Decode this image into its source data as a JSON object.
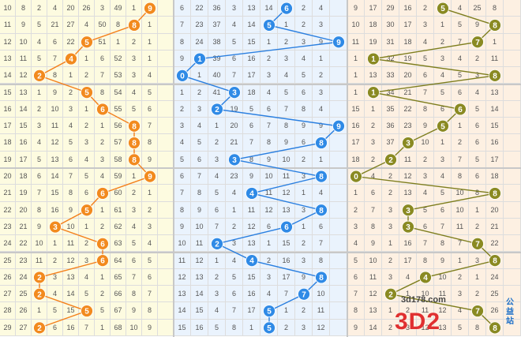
{
  "watermark": {
    "url": "3d178.com",
    "logo": "3D2",
    "side": "公益站"
  },
  "colors": {
    "zone1_bg": "#fdfbe0",
    "zone2_bg": "#eaf3fd",
    "zone3_bg": "#fdf0e2",
    "orange": "#f28a1e",
    "blue": "#2f8ae6",
    "olive": "#8a8a22",
    "line_orange": "#f47f1a",
    "line_blue": "#2a7fe0",
    "line_olive": "#7e7e1e"
  },
  "rows": [
    {
      "issue": "10",
      "a": [
        "8",
        "2",
        "4",
        "20",
        "26",
        "3",
        "49",
        "1",
        "9"
      ],
      "b": [
        "6",
        "22",
        "36",
        "3",
        "13",
        "14",
        "6",
        "2",
        "4"
      ],
      "c": [
        "9",
        "17",
        "29",
        "16",
        "2",
        "5",
        "4",
        "25",
        "8"
      ]
    },
    {
      "issue": "11",
      "a": [
        "9",
        "5",
        "21",
        "27",
        "4",
        "50",
        "8",
        "1",
        "1"
      ],
      "b": [
        "7",
        "23",
        "37",
        "4",
        "14",
        "5",
        "1",
        "2",
        "3"
      ],
      "c": [
        "10",
        "18",
        "30",
        "17",
        "3",
        "1",
        "5",
        "9",
        "9"
      ]
    },
    {
      "issue": "12",
      "a": [
        "10",
        "4",
        "6",
        "22",
        "5",
        "51",
        "1",
        "2",
        "1"
      ],
      "b": [
        "8",
        "24",
        "38",
        "5",
        "15",
        "1",
        "2",
        "3",
        "9"
      ],
      "c": [
        "11",
        "19",
        "31",
        "18",
        "4",
        "2",
        "7",
        "10",
        "1"
      ]
    },
    {
      "issue": "13",
      "a": [
        "11",
        "5",
        "7",
        "4",
        "1",
        "6",
        "52",
        "3",
        "1"
      ],
      "b": [
        "9",
        "1",
        "39",
        "6",
        "16",
        "2",
        "3",
        "4",
        "1"
      ],
      "c": [
        "1",
        "12",
        "32",
        "19",
        "5",
        "3",
        "4",
        "2",
        "11"
      ]
    },
    {
      "issue": "14",
      "a": [
        "12",
        "2",
        "8",
        "1",
        "2",
        "7",
        "53",
        "3",
        "4"
      ],
      "b": [
        "6",
        "1",
        "40",
        "7",
        "17",
        "3",
        "4",
        "5",
        "2"
      ],
      "c": [
        "1",
        "13",
        "33",
        "20",
        "6",
        "4",
        "5",
        "3",
        "9"
      ]
    },
    {
      "issue": "15",
      "a": [
        "13",
        "1",
        "9",
        "2",
        "5",
        "8",
        "54",
        "4",
        "5"
      ],
      "b": [
        "1",
        "2",
        "41",
        "3",
        "18",
        "4",
        "5",
        "6",
        "3"
      ],
      "c": [
        "1",
        "14",
        "34",
        "21",
        "7",
        "5",
        "6",
        "4",
        "13"
      ]
    },
    {
      "issue": "16",
      "a": [
        "14",
        "2",
        "10",
        "3",
        "1",
        "6",
        "55",
        "5",
        "6"
      ],
      "b": [
        "2",
        "3",
        "1",
        "19",
        "5",
        "6",
        "7",
        "8",
        "4"
      ],
      "c": [
        "15",
        "1",
        "35",
        "22",
        "8",
        "6",
        "6",
        "5",
        "14"
      ]
    },
    {
      "issue": "17",
      "a": [
        "15",
        "3",
        "11",
        "4",
        "2",
        "1",
        "56",
        "3",
        "7"
      ],
      "b": [
        "3",
        "4",
        "1",
        "20",
        "6",
        "7",
        "8",
        "9",
        "9"
      ],
      "c": [
        "16",
        "2",
        "36",
        "23",
        "9",
        "5",
        "1",
        "6",
        "15"
      ]
    },
    {
      "issue": "18",
      "a": [
        "16",
        "4",
        "12",
        "5",
        "3",
        "2",
        "57",
        "8",
        "8"
      ],
      "b": [
        "4",
        "5",
        "2",
        "21",
        "7",
        "8",
        "9",
        "6",
        "10"
      ],
      "c": [
        "17",
        "3",
        "37",
        "3",
        "10",
        "1",
        "2",
        "6",
        "16"
      ]
    },
    {
      "issue": "19",
      "a": [
        "17",
        "5",
        "13",
        "6",
        "4",
        "3",
        "58",
        "8",
        "9"
      ],
      "b": [
        "5",
        "6",
        "3",
        "22",
        "8",
        "9",
        "10",
        "2",
        "1"
      ],
      "c": [
        "18",
        "2",
        "1",
        "11",
        "2",
        "3",
        "7",
        "5",
        "17"
      ]
    },
    {
      "issue": "20",
      "a": [
        "18",
        "6",
        "14",
        "7",
        "5",
        "4",
        "59",
        "1",
        "9"
      ],
      "b": [
        "6",
        "7",
        "4",
        "23",
        "9",
        "10",
        "11",
        "3",
        "3"
      ],
      "c": [
        "6",
        "4",
        "2",
        "12",
        "3",
        "4",
        "8",
        "6",
        "18"
      ]
    },
    {
      "issue": "21",
      "a": [
        "19",
        "7",
        "15",
        "8",
        "6",
        "6",
        "60",
        "2",
        "1"
      ],
      "b": [
        "7",
        "8",
        "5",
        "4",
        "10",
        "11",
        "12",
        "1",
        "4"
      ],
      "c": [
        "1",
        "6",
        "2",
        "13",
        "4",
        "5",
        "10",
        "8",
        "19"
      ]
    },
    {
      "issue": "22",
      "a": [
        "20",
        "8",
        "16",
        "9",
        "5",
        "1",
        "61",
        "3",
        "2"
      ],
      "b": [
        "8",
        "9",
        "6",
        "1",
        "11",
        "12",
        "13",
        "3",
        "5"
      ],
      "c": [
        "2",
        "7",
        "3",
        "14",
        "5",
        "6",
        "10",
        "1",
        "20"
      ]
    },
    {
      "issue": "23",
      "a": [
        "21",
        "9",
        "3",
        "10",
        "1",
        "2",
        "62",
        "4",
        "3"
      ],
      "b": [
        "9",
        "10",
        "7",
        "2",
        "12",
        "6",
        "14",
        "1",
        "6"
      ],
      "c": [
        "3",
        "8",
        "3",
        "15",
        "6",
        "7",
        "11",
        "2",
        "21"
      ]
    },
    {
      "issue": "24",
      "a": [
        "22",
        "10",
        "1",
        "11",
        "2",
        "8",
        "63",
        "5",
        "4"
      ],
      "b": [
        "10",
        "11",
        "2",
        "3",
        "13",
        "1",
        "15",
        "2",
        "7"
      ],
      "c": [
        "4",
        "9",
        "1",
        "16",
        "7",
        "8",
        "7",
        "3",
        "22"
      ]
    },
    {
      "issue": "25",
      "a": [
        "23",
        "11",
        "2",
        "12",
        "3",
        "8",
        "64",
        "6",
        "5"
      ],
      "b": [
        "11",
        "12",
        "1",
        "4",
        "14",
        "2",
        "16",
        "3",
        "8"
      ],
      "c": [
        "5",
        "10",
        "2",
        "17",
        "8",
        "9",
        "1",
        "3",
        "23"
      ]
    },
    {
      "issue": "26",
      "a": [
        "24",
        "2",
        "3",
        "13",
        "4",
        "1",
        "65",
        "7",
        "6"
      ],
      "b": [
        "12",
        "13",
        "2",
        "5",
        "15",
        "3",
        "17",
        "9",
        "9"
      ],
      "c": [
        "6",
        "11",
        "3",
        "4",
        "9",
        "10",
        "2",
        "1",
        "24"
      ]
    },
    {
      "issue": "27",
      "a": [
        "25",
        "2",
        "4",
        "14",
        "5",
        "2",
        "66",
        "8",
        "7"
      ],
      "b": [
        "13",
        "14",
        "3",
        "6",
        "16",
        "4",
        "7",
        "1",
        "10"
      ],
      "c": [
        "7",
        "12",
        "2",
        "1",
        "10",
        "11",
        "3",
        "2",
        "25"
      ]
    },
    {
      "issue": "28",
      "a": [
        "26",
        "1",
        "5",
        "15",
        "6",
        "5",
        "67",
        "9",
        "8"
      ],
      "b": [
        "14",
        "15",
        "4",
        "7",
        "17",
        "5",
        "1",
        "2",
        "11"
      ],
      "c": [
        "8",
        "13",
        "1",
        "2",
        "11",
        "12",
        "4",
        "7",
        "26"
      ]
    },
    {
      "issue": "29",
      "a": [
        "27",
        "2",
        "6",
        "16",
        "7",
        "1",
        "68",
        "10",
        "9"
      ],
      "b": [
        "15",
        "16",
        "5",
        "8",
        "1",
        "6",
        "2",
        "3",
        "12"
      ],
      "c": [
        "9",
        "14",
        "2",
        "3",
        "12",
        "13",
        "5",
        "8",
        "27"
      ]
    }
  ],
  "zone1_balls": [
    {
      "row": 0,
      "col": 9,
      "num": "9"
    },
    {
      "row": 1,
      "col": 8,
      "num": "8"
    },
    {
      "row": 2,
      "col": 5,
      "num": "5"
    },
    {
      "row": 3,
      "col": 4,
      "num": "4"
    },
    {
      "row": 4,
      "col": 2,
      "num": "2"
    },
    {
      "row": 5,
      "col": 5,
      "num": "5"
    },
    {
      "row": 6,
      "col": 6,
      "num": "6"
    },
    {
      "row": 7,
      "col": 8,
      "num": "8"
    },
    {
      "row": 8,
      "col": 8,
      "num": "8"
    },
    {
      "row": 9,
      "col": 8,
      "num": "8"
    },
    {
      "row": 10,
      "col": 9,
      "num": "9"
    },
    {
      "row": 11,
      "col": 6,
      "num": "6"
    },
    {
      "row": 12,
      "col": 5,
      "num": "5"
    },
    {
      "row": 13,
      "col": 3,
      "num": "3"
    },
    {
      "row": 14,
      "col": 6,
      "num": "6"
    },
    {
      "row": 15,
      "col": 6,
      "num": "6"
    },
    {
      "row": 16,
      "col": 2,
      "num": "2"
    },
    {
      "row": 17,
      "col": 2,
      "num": "2"
    },
    {
      "row": 18,
      "col": 5,
      "num": "5"
    },
    {
      "row": 19,
      "col": 2,
      "num": "2"
    }
  ],
  "zone2_balls": [
    {
      "row": 0,
      "col": 6,
      "num": "6"
    },
    {
      "row": 1,
      "col": 5,
      "num": "5"
    },
    {
      "row": 2,
      "col": 9,
      "num": "9"
    },
    {
      "row": 3,
      "col": 1,
      "num": "1"
    },
    {
      "row": 4,
      "col": 0,
      "num": "0"
    },
    {
      "row": 5,
      "col": 3,
      "num": "3"
    },
    {
      "row": 6,
      "col": 2,
      "num": "2"
    },
    {
      "row": 7,
      "col": 9,
      "num": "9"
    },
    {
      "row": 8,
      "col": 8,
      "num": "8"
    },
    {
      "row": 9,
      "col": 3,
      "num": "3"
    },
    {
      "row": 10,
      "col": 8,
      "num": "8"
    },
    {
      "row": 11,
      "col": 4,
      "num": "4"
    },
    {
      "row": 12,
      "col": 8,
      "num": "8"
    },
    {
      "row": 13,
      "col": 6,
      "num": "6"
    },
    {
      "row": 14,
      "col": 2,
      "num": "2"
    },
    {
      "row": 15,
      "col": 4,
      "num": "4"
    },
    {
      "row": 16,
      "col": 8,
      "num": "8"
    },
    {
      "row": 17,
      "col": 7,
      "num": "7"
    },
    {
      "row": 18,
      "col": 5,
      "num": "5"
    },
    {
      "row": 19,
      "col": 5,
      "num": "5"
    }
  ],
  "zone3_balls": [
    {
      "row": 0,
      "col": 5,
      "num": "5"
    },
    {
      "row": 1,
      "col": 8,
      "num": "8"
    },
    {
      "row": 2,
      "col": 7,
      "num": "7"
    },
    {
      "row": 3,
      "col": 1,
      "num": "1"
    },
    {
      "row": 4,
      "col": 8,
      "num": "8"
    },
    {
      "row": 5,
      "col": 1,
      "num": "1"
    },
    {
      "row": 6,
      "col": 6,
      "num": "6"
    },
    {
      "row": 7,
      "col": 5,
      "num": "5"
    },
    {
      "row": 8,
      "col": 3,
      "num": "3"
    },
    {
      "row": 9,
      "col": 2,
      "num": "2"
    },
    {
      "row": 10,
      "col": 0,
      "num": "0"
    },
    {
      "row": 11,
      "col": 8,
      "num": "8"
    },
    {
      "row": 12,
      "col": 3,
      "num": "3"
    },
    {
      "row": 13,
      "col": 3,
      "num": "3"
    },
    {
      "row": 14,
      "col": 7,
      "num": "7"
    },
    {
      "row": 15,
      "col": 8,
      "num": "8"
    },
    {
      "row": 16,
      "col": 4,
      "num": "4"
    },
    {
      "row": 17,
      "col": 2,
      "num": "2"
    },
    {
      "row": 18,
      "col": 7,
      "num": "7"
    },
    {
      "row": 19,
      "col": 8,
      "num": "8"
    }
  ]
}
